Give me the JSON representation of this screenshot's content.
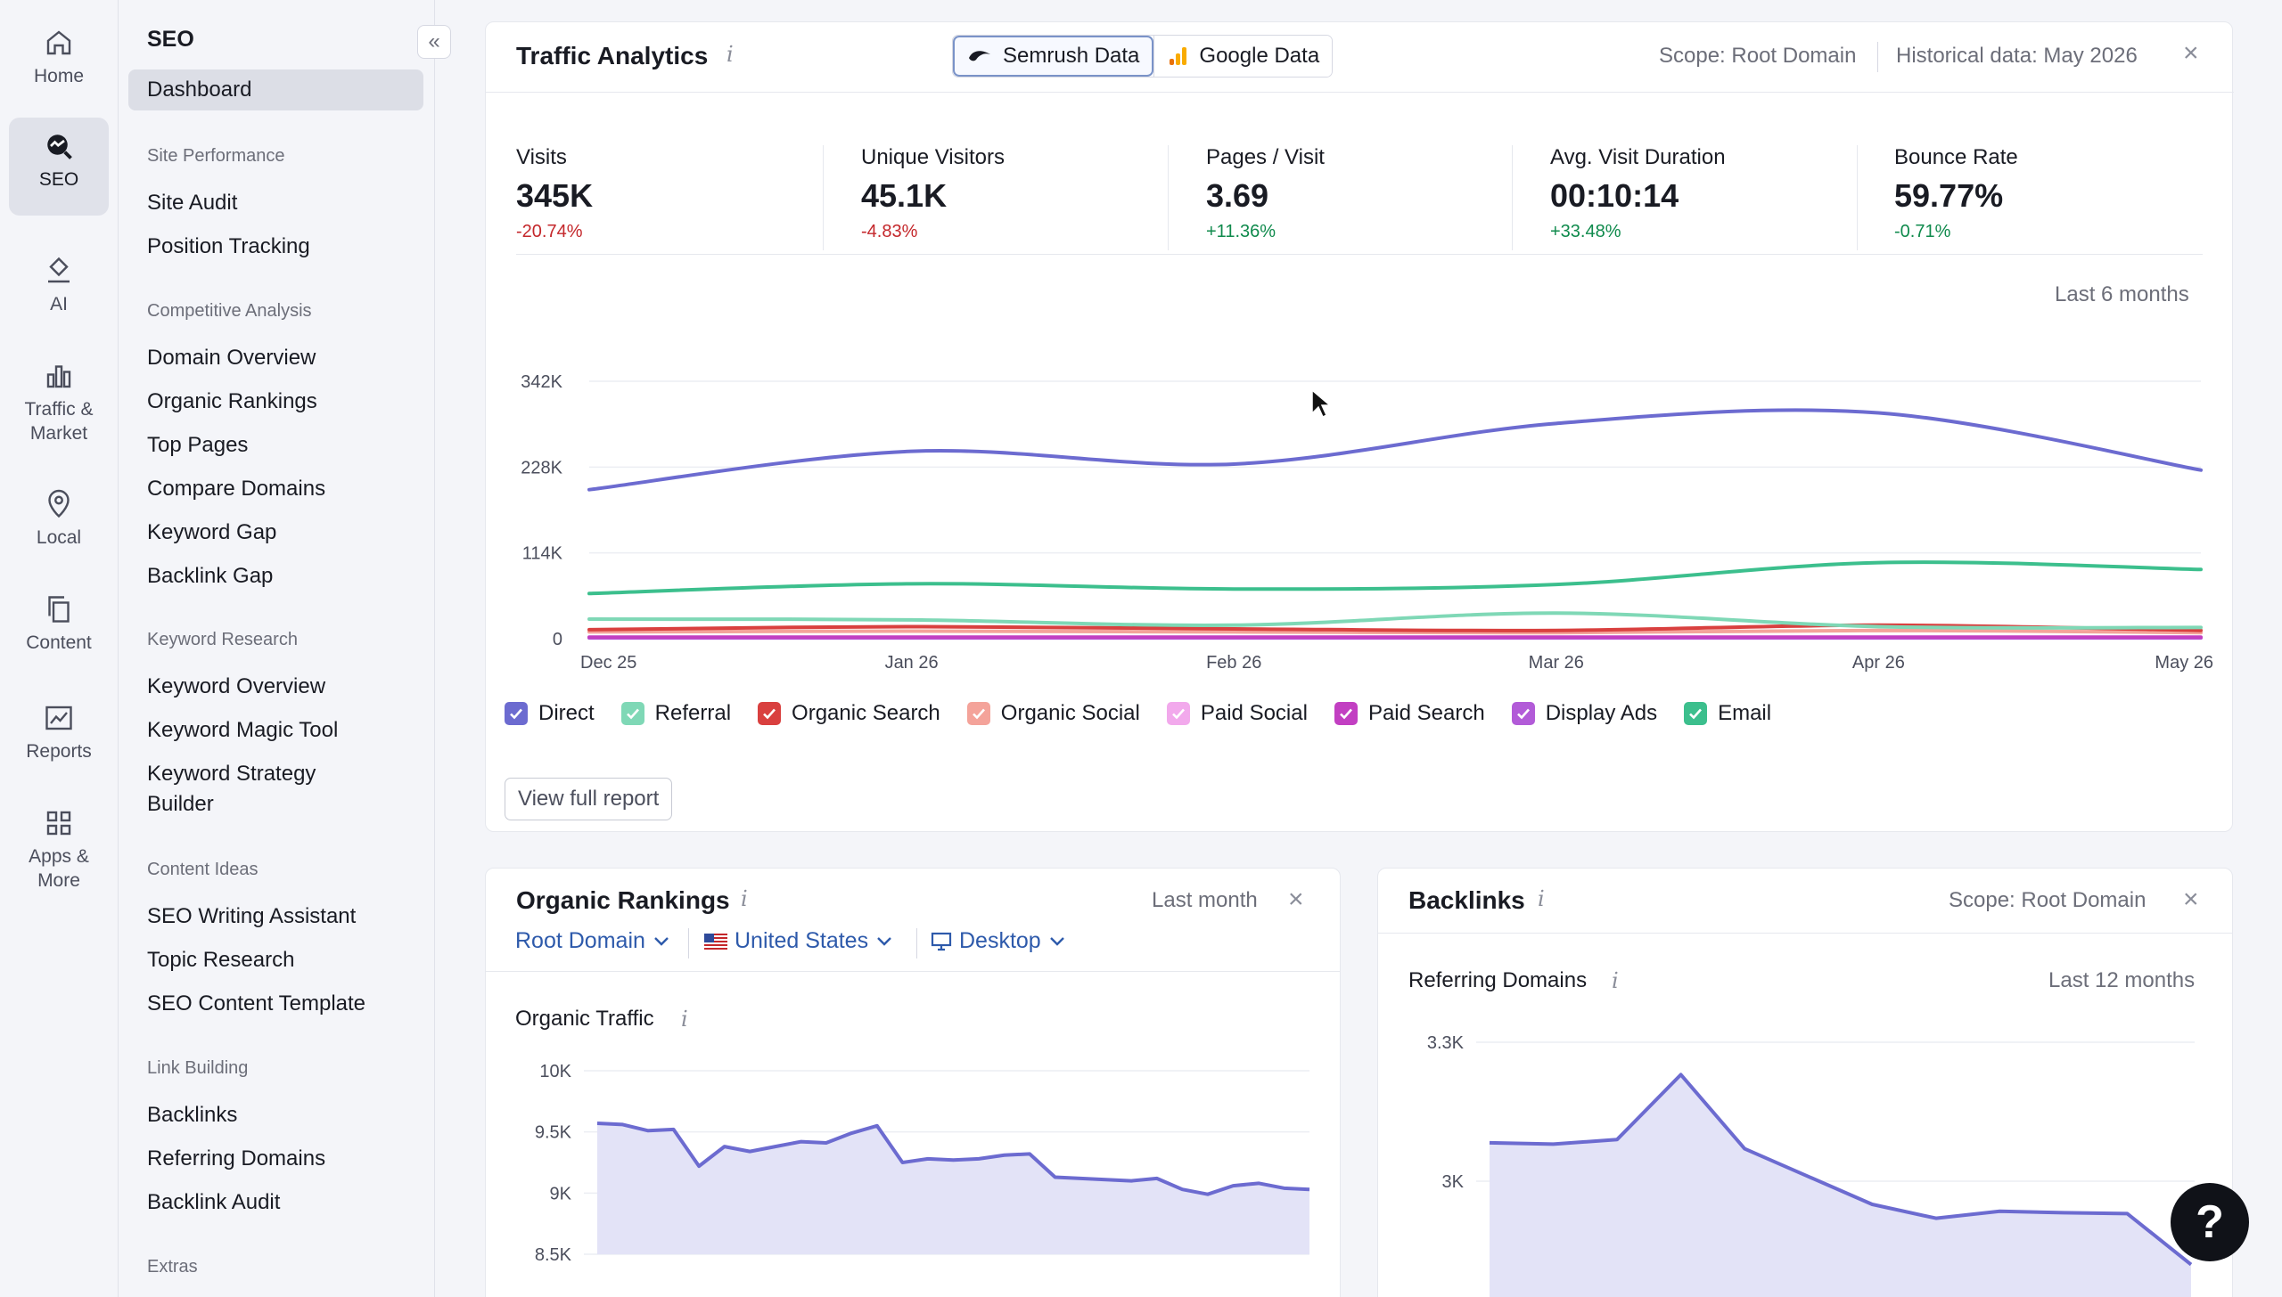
{
  "nav_rail": [
    {
      "label": "Home",
      "icon": "home-icon"
    },
    {
      "label": "SEO",
      "icon": "seo-icon",
      "active": true
    },
    {
      "label": "AI",
      "icon": "ai-icon"
    },
    {
      "label": "Traffic &\nMarket",
      "icon": "chart-bars-icon"
    },
    {
      "label": "Local",
      "icon": "location-pin-icon"
    },
    {
      "label": "Content",
      "icon": "content-icon"
    },
    {
      "label": "Reports",
      "icon": "reports-icon"
    },
    {
      "label": "Apps &\nMore",
      "icon": "apps-grid-icon"
    }
  ],
  "subnav": {
    "title": "SEO",
    "collapse_icon": "double-chevron-left-icon",
    "dashboard": "Dashboard",
    "sections": [
      {
        "title": "Site Performance",
        "items": [
          "Site Audit",
          "Position Tracking"
        ]
      },
      {
        "title": "Competitive Analysis",
        "items": [
          "Domain Overview",
          "Organic Rankings",
          "Top Pages",
          "Compare Domains",
          "Keyword Gap",
          "Backlink Gap"
        ]
      },
      {
        "title": "Keyword Research",
        "items": [
          "Keyword Overview",
          "Keyword Magic Tool",
          "Keyword Strategy Builder"
        ]
      },
      {
        "title": "Content Ideas",
        "items": [
          "SEO Writing Assistant",
          "Topic Research",
          "SEO Content Template"
        ]
      },
      {
        "title": "Link Building",
        "items": [
          "Backlinks",
          "Referring Domains",
          "Backlink Audit"
        ]
      },
      {
        "title": "Extras",
        "items": []
      }
    ]
  },
  "traffic": {
    "title": "Traffic Analytics",
    "tab_semrush": "Semrush Data",
    "tab_google": "Google Data",
    "scope": "Scope: Root Domain",
    "historical": "Historical data: May 2026",
    "period": "Last 6 months",
    "view_full": "View full report",
    "metrics": [
      {
        "label": "Visits",
        "value": "345K",
        "delta": "-20.74%",
        "trend": "neg"
      },
      {
        "label": "Unique Visitors",
        "value": "45.1K",
        "delta": "-4.83%",
        "trend": "neg"
      },
      {
        "label": "Pages / Visit",
        "value": "3.69",
        "delta": "+11.36%",
        "trend": "pos"
      },
      {
        "label": "Avg. Visit Duration",
        "value": "00:10:14",
        "delta": "+33.48%",
        "trend": "pos"
      },
      {
        "label": "Bounce Rate",
        "value": "59.77%",
        "delta": "-0.71%",
        "trend": "neg-green"
      }
    ],
    "legend": [
      {
        "name": "Direct",
        "color": "#6c6bd0"
      },
      {
        "name": "Referral",
        "color": "#7fd8b6"
      },
      {
        "name": "Organic Search",
        "color": "#d9403f"
      },
      {
        "name": "Organic Social",
        "color": "#f4a39a"
      },
      {
        "name": "Paid Social",
        "color": "#f2a9ec"
      },
      {
        "name": "Paid Search",
        "color": "#c23fc2"
      },
      {
        "name": "Display Ads",
        "color": "#b25bd8"
      },
      {
        "name": "Email",
        "color": "#3cbf8d"
      }
    ]
  },
  "chart_data": [
    {
      "type": "line",
      "title": "Traffic Analytics",
      "x": [
        "Dec 25",
        "Jan 26",
        "Feb 26",
        "Mar 26",
        "Apr 26",
        "May 26"
      ],
      "y_ticks": [
        "342K",
        "228K",
        "114K",
        "0"
      ],
      "ylim": [
        0,
        342000
      ],
      "series": [
        {
          "name": "Direct",
          "color": "#6c6bd0",
          "values": [
            198000,
            249000,
            232000,
            286000,
            300000,
            224000
          ]
        },
        {
          "name": "Email",
          "color": "#3cbf8d",
          "values": [
            60000,
            73000,
            66000,
            72000,
            101000,
            92000
          ]
        },
        {
          "name": "Referral",
          "color": "#7fd8b6",
          "values": [
            26000,
            25000,
            18000,
            34000,
            16000,
            15000
          ]
        },
        {
          "name": "Organic Search",
          "color": "#d9403f",
          "values": [
            12000,
            16000,
            13000,
            11000,
            18000,
            11000
          ]
        },
        {
          "name": "Organic Social",
          "color": "#f4a39a",
          "values": [
            9000,
            10000,
            9000,
            8000,
            11000,
            8000
          ]
        },
        {
          "name": "Paid Search",
          "color": "#c23fc2",
          "values": [
            2000,
            2000,
            2000,
            2000,
            2000,
            2000
          ]
        },
        {
          "name": "Display Ads",
          "color": "#b25bd8",
          "values": [
            1000,
            1000,
            1000,
            1000,
            1000,
            1000
          ]
        }
      ]
    },
    {
      "type": "area",
      "title": "Organic Traffic",
      "y_ticks": [
        "10K",
        "9.5K",
        "9K",
        "8.5K"
      ],
      "ylim": [
        8500,
        10000
      ],
      "values": [
        9570,
        9560,
        9510,
        9520,
        9220,
        9380,
        9340,
        9380,
        9420,
        9410,
        9490,
        9550,
        9250,
        9280,
        9270,
        9280,
        9310,
        9320,
        9130,
        9120,
        9110,
        9100,
        9120,
        9030,
        8990,
        9060,
        9080,
        9040,
        9030
      ]
    },
    {
      "type": "area",
      "title": "Referring Domains",
      "y_ticks": [
        "3.3K",
        "3K"
      ],
      "ylim": [
        2750,
        3300
      ],
      "values": [
        3083,
        3080,
        3090,
        3230,
        3070,
        3010,
        2950,
        2920,
        2935,
        2932,
        2930,
        2820
      ]
    }
  ],
  "organic": {
    "title": "Organic Rankings",
    "period": "Last month",
    "dd_root": "Root Domain",
    "dd_country": "United States",
    "dd_device": "Desktop",
    "chart_title": "Organic Traffic"
  },
  "backlinks": {
    "title": "Backlinks",
    "scope": "Scope: Root Domain",
    "chart_title": "Referring Domains",
    "period": "Last 12 months"
  },
  "help_label": "?"
}
